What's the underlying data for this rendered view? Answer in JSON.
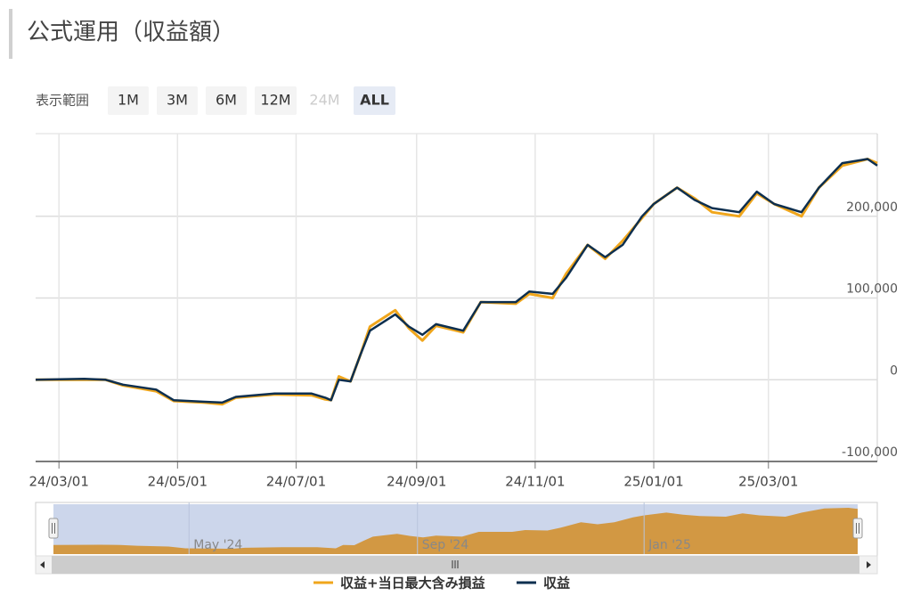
{
  "header": {
    "title": "公式運用（収益額）"
  },
  "range_selector": {
    "label": "表示範囲",
    "buttons": [
      {
        "label": "1M"
      },
      {
        "label": "3M"
      },
      {
        "label": "6M"
      },
      {
        "label": "12M"
      },
      {
        "label": "24M",
        "disabled": true
      },
      {
        "label": "ALL",
        "selected": true
      }
    ]
  },
  "chart_data": {
    "type": "line",
    "x": [
      "2024-02-18",
      "2024-03-14",
      "2024-03-25",
      "2024-04-03",
      "2024-04-20",
      "2024-04-29",
      "2024-05-15",
      "2024-05-24",
      "2024-05-31",
      "2024-06-20",
      "2024-07-09",
      "2024-07-16",
      "2024-07-19",
      "2024-07-23",
      "2024-07-29",
      "2024-08-03",
      "2024-08-08",
      "2024-08-21",
      "2024-08-28",
      "2024-09-04",
      "2024-09-11",
      "2024-09-25",
      "2024-10-04",
      "2024-10-22",
      "2024-10-29",
      "2024-11-10",
      "2024-11-17",
      "2024-11-28",
      "2024-12-07",
      "2024-12-16",
      "2024-12-26",
      "2025-01-01",
      "2025-01-13",
      "2025-01-22",
      "2025-01-31",
      "2025-02-14",
      "2025-02-23",
      "2025-03-04",
      "2025-03-18",
      "2025-03-27",
      "2025-04-08",
      "2025-04-21",
      "2025-04-26"
    ],
    "series": [
      {
        "name": "収益+当日最大含み損益",
        "color": "#f0a61c",
        "values": [
          0,
          0,
          0,
          -7000,
          -14000,
          -26000,
          -28000,
          -30000,
          -22000,
          -18000,
          -19000,
          -24000,
          -25000,
          4000,
          -2000,
          30000,
          65000,
          85000,
          63000,
          48000,
          66000,
          58000,
          95000,
          93000,
          105000,
          100000,
          130000,
          165000,
          148000,
          170000,
          198000,
          215000,
          235000,
          222000,
          205000,
          200000,
          228000,
          215000,
          200000,
          235000,
          262000,
          270000,
          265000
        ]
      },
      {
        "name": "収益",
        "color": "#0d2f4f",
        "values": [
          0,
          1000,
          0,
          -6000,
          -12000,
          -25000,
          -27000,
          -28000,
          -21000,
          -17000,
          -17000,
          -22000,
          -25000,
          0,
          -2000,
          30000,
          60000,
          80000,
          65000,
          55000,
          68000,
          60000,
          95000,
          95000,
          108000,
          105000,
          125000,
          165000,
          150000,
          165000,
          200000,
          215000,
          235000,
          220000,
          210000,
          205000,
          230000,
          215000,
          205000,
          235000,
          265000,
          270000,
          262000
        ]
      }
    ],
    "xlim": [
      "2024-02-18",
      "2025-04-26"
    ],
    "xticks": [
      {
        "value": "2024-03-01",
        "label": "24/03/01"
      },
      {
        "value": "2024-05-01",
        "label": "24/05/01"
      },
      {
        "value": "2024-07-01",
        "label": "24/07/01"
      },
      {
        "value": "2024-09-01",
        "label": "24/09/01"
      },
      {
        "value": "2024-11-01",
        "label": "24/11/01"
      },
      {
        "value": "2025-01-01",
        "label": "25/01/01"
      },
      {
        "value": "2025-03-01",
        "label": "25/03/01"
      }
    ],
    "ylim": [
      -100000,
      300000
    ],
    "yticks": [
      {
        "value": -100000,
        "label": "-100,000"
      },
      0,
      {
        "value": 100000,
        "label": "100,000"
      },
      {
        "value": 200000,
        "label": "200,000"
      }
    ],
    "grid": true,
    "legend": "bottom",
    "navigator": {
      "color": "#d2953a",
      "xticks": [
        {
          "value": "2024-05-01",
          "label": "May '24"
        },
        {
          "value": "2024-09-01",
          "label": "Sep '24"
        },
        {
          "value": "2025-01-01",
          "label": "Jan '25"
        }
      ]
    }
  }
}
